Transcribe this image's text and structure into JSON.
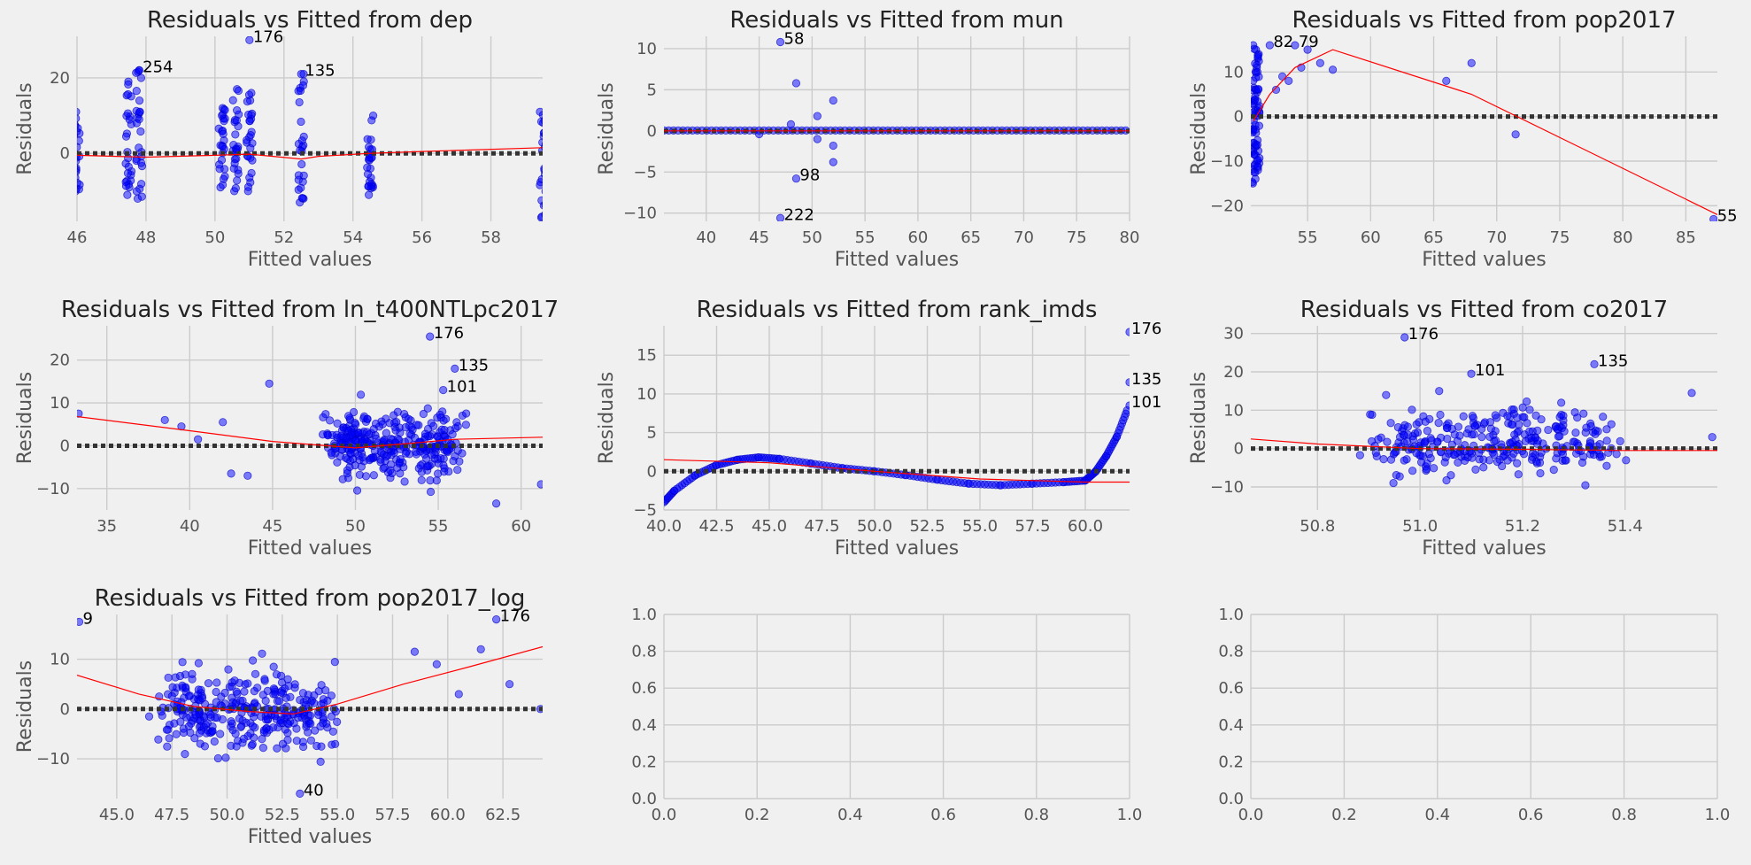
{
  "figure": {
    "background": "#f0f0f0",
    "axes_background": "#f0f0f0",
    "grid_color": "#cbcbcb",
    "tick_color": "#555555",
    "point_color": "#0000ff",
    "lowess_color": "#ff0000",
    "zero_line_color": "#333333"
  },
  "chart_data": [
    {
      "type": "scatter",
      "title": "Residuals vs Fitted from dep",
      "xlabel": "Fitted values",
      "ylabel": "Residuals",
      "xlim": [
        46,
        59.5
      ],
      "ylim": [
        -18,
        31
      ],
      "xticks": [
        46,
        48,
        50,
        52,
        54,
        56,
        58
      ],
      "yticks": [
        0,
        20
      ],
      "x_tick_labels": [
        "46",
        "48",
        "50",
        "52",
        "54",
        "56",
        "58"
      ],
      "y_tick_labels": [
        "0",
        "20"
      ],
      "grid": true,
      "scatter_columns": [
        {
          "x": 46.0,
          "ymin": -10,
          "ymax": 11
        },
        {
          "x": 47.5,
          "ymin": -11,
          "ymax": 19
        },
        {
          "x": 47.8,
          "ymin": -12,
          "ymax": 22
        },
        {
          "x": 50.2,
          "ymin": -9,
          "ymax": 12
        },
        {
          "x": 50.6,
          "ymin": -10,
          "ymax": 17
        },
        {
          "x": 51.0,
          "ymin": -10,
          "ymax": 16
        },
        {
          "x": 52.5,
          "ymin": -13,
          "ymax": 21
        },
        {
          "x": 54.5,
          "ymin": -11,
          "ymax": 10
        },
        {
          "x": 59.5,
          "ymin": -17,
          "ymax": 11
        }
      ],
      "points": [
        [
          47.8,
          22
        ],
        [
          51.0,
          30
        ],
        [
          52.5,
          21
        ]
      ],
      "lowess": [
        [
          46,
          -0.5
        ],
        [
          48,
          -1
        ],
        [
          50,
          -0.5
        ],
        [
          51,
          -0.2
        ],
        [
          52.5,
          -1.5
        ],
        [
          53,
          -0.8
        ],
        [
          54.5,
          0
        ],
        [
          56,
          0.5
        ],
        [
          59.5,
          1.5
        ]
      ],
      "annotations": [
        {
          "text": "254",
          "x": 47.8,
          "y": 22
        },
        {
          "text": "176",
          "x": 51.0,
          "y": 30
        },
        {
          "text": "135",
          "x": 52.5,
          "y": 21
        }
      ]
    },
    {
      "type": "scatter",
      "title": "Residuals vs Fitted from mun",
      "xlabel": "Fitted values",
      "ylabel": "Residuals",
      "xlim": [
        36,
        80
      ],
      "ylim": [
        -11,
        11.5
      ],
      "xticks": [
        40,
        45,
        50,
        55,
        60,
        65,
        70,
        75,
        80
      ],
      "yticks": [
        -10,
        -5,
        0,
        5,
        10
      ],
      "x_tick_labels": [
        "40",
        "45",
        "50",
        "55",
        "60",
        "65",
        "70",
        "75",
        "80"
      ],
      "y_tick_labels": [
        "−10",
        "−5",
        "0",
        "5",
        "10"
      ],
      "grid": true,
      "flat_band": {
        "xmin": 36,
        "xmax": 80,
        "y": 0
      },
      "points": [
        [
          47,
          10.8
        ],
        [
          48.5,
          5.8
        ],
        [
          50.5,
          1.8
        ],
        [
          52,
          3.7
        ],
        [
          50.5,
          -1
        ],
        [
          52,
          -1.8
        ],
        [
          52,
          -3.8
        ],
        [
          48.5,
          -5.8
        ],
        [
          47,
          -10.6
        ],
        [
          48,
          0.8
        ],
        [
          45,
          -0.4
        ]
      ],
      "lowess": [
        [
          36,
          0
        ],
        [
          80,
          0
        ]
      ],
      "annotations": [
        {
          "text": "58",
          "x": 47,
          "y": 10.8
        },
        {
          "text": "98",
          "x": 48.5,
          "y": -5.8
        },
        {
          "text": "222",
          "x": 47,
          "y": -10.6
        }
      ]
    },
    {
      "type": "scatter",
      "title": "Residuals vs Fitted from pop2017",
      "xlabel": "Fitted values",
      "ylabel": "Residuals",
      "xlim": [
        50.5,
        87.5
      ],
      "ylim": [
        -23.5,
        18
      ],
      "xticks": [
        55,
        60,
        65,
        70,
        75,
        80,
        85
      ],
      "yticks": [
        -20,
        -10,
        0,
        10
      ],
      "x_tick_labels": [
        "55",
        "60",
        "65",
        "70",
        "75",
        "80",
        "85"
      ],
      "y_tick_labels": [
        "−20",
        "−10",
        "0",
        "10"
      ],
      "grid": true,
      "scatter_columns": [
        {
          "x": 50.7,
          "ymin": -15,
          "ymax": 16
        },
        {
          "x": 50.9,
          "ymin": -14,
          "ymax": 15
        },
        {
          "x": 51.1,
          "ymin": -12,
          "ymax": 14
        }
      ],
      "points": [
        [
          52,
          16
        ],
        [
          54,
          16
        ],
        [
          55,
          15
        ],
        [
          56,
          12
        ],
        [
          54.5,
          11
        ],
        [
          57,
          10.5
        ],
        [
          53.5,
          8
        ],
        [
          52.5,
          6
        ],
        [
          53,
          9
        ],
        [
          66,
          8
        ],
        [
          68,
          12
        ],
        [
          71.5,
          -4
        ],
        [
          87.2,
          -23
        ]
      ],
      "lowess": [
        [
          50.7,
          -1
        ],
        [
          52,
          5
        ],
        [
          54,
          11
        ],
        [
          57,
          15
        ],
        [
          68,
          5
        ],
        [
          87.5,
          -22
        ]
      ],
      "annotations": [
        {
          "text": "82",
          "x": 52,
          "y": 16
        },
        {
          "text": "79",
          "x": 54,
          "y": 16
        },
        {
          "text": "55",
          "x": 87.2,
          "y": -23
        }
      ]
    },
    {
      "type": "scatter",
      "title": "Residuals vs Fitted from ln_t400NTLpc2017",
      "xlabel": "Fitted values",
      "ylabel": "Residuals",
      "xlim": [
        33.2,
        61.3
      ],
      "ylim": [
        -15,
        28
      ],
      "xticks": [
        35,
        40,
        45,
        50,
        55,
        60
      ],
      "yticks": [
        -10,
        0,
        10,
        20
      ],
      "x_tick_labels": [
        "35",
        "40",
        "45",
        "50",
        "55",
        "60"
      ],
      "y_tick_labels": [
        "−10",
        "0",
        "10",
        "20"
      ],
      "grid": true,
      "cloud": {
        "xmin": 44.5,
        "xmax": 60,
        "ymin": -13,
        "ymax": 14,
        "count": 320,
        "seed": 7
      },
      "points": [
        [
          33.3,
          7.5
        ],
        [
          38.5,
          6
        ],
        [
          39.5,
          4.5
        ],
        [
          40.5,
          1.5
        ],
        [
          42,
          5.5
        ],
        [
          42.5,
          -6.5
        ],
        [
          43.5,
          -7
        ],
        [
          44.8,
          14.5
        ],
        [
          54.5,
          25.5
        ],
        [
          56,
          18
        ],
        [
          55.3,
          13
        ],
        [
          58.5,
          -13.5
        ],
        [
          61.2,
          -9
        ]
      ],
      "lowess": [
        [
          33.2,
          6.8
        ],
        [
          40,
          3.5
        ],
        [
          45,
          1
        ],
        [
          50,
          -0.5
        ],
        [
          54,
          0.8
        ],
        [
          56,
          1.5
        ],
        [
          61.3,
          2
        ]
      ],
      "annotations": [
        {
          "text": "176",
          "x": 54.5,
          "y": 25.5
        },
        {
          "text": "135",
          "x": 56,
          "y": 18
        },
        {
          "text": "101",
          "x": 55.3,
          "y": 13
        }
      ]
    },
    {
      "type": "scatter",
      "title": "Residuals vs Fitted from rank_imds",
      "xlabel": "Fitted values",
      "ylabel": "Residuals",
      "xlim": [
        40,
        62.1
      ],
      "ylim": [
        -5,
        18.8
      ],
      "xticks": [
        40.0,
        42.5,
        45.0,
        47.5,
        50.0,
        52.5,
        55.0,
        57.5,
        60.0
      ],
      "yticks": [
        -5,
        0,
        5,
        10,
        15
      ],
      "x_tick_labels": [
        "40.0",
        "42.5",
        "45.0",
        "47.5",
        "50.0",
        "52.5",
        "55.0",
        "57.5",
        "60.0"
      ],
      "y_tick_labels": [
        "−5",
        "0",
        "5",
        "10",
        "15"
      ],
      "grid": true,
      "curve_points": [
        [
          40,
          -4
        ],
        [
          40.5,
          -2.5
        ],
        [
          41.5,
          -0.5
        ],
        [
          42.5,
          0.8
        ],
        [
          43.5,
          1.5
        ],
        [
          44.5,
          1.8
        ],
        [
          45.5,
          1.6
        ],
        [
          47,
          1
        ],
        [
          48.5,
          0.4
        ],
        [
          50,
          0
        ],
        [
          51.5,
          -0.5
        ],
        [
          53,
          -1.1
        ],
        [
          54.5,
          -1.6
        ],
        [
          56,
          -1.8
        ],
        [
          57.5,
          -1.6
        ],
        [
          59,
          -1.4
        ],
        [
          60,
          -1.2
        ],
        [
          60.5,
          0
        ],
        [
          61,
          2
        ],
        [
          61.5,
          4.5
        ],
        [
          62,
          8
        ]
      ],
      "points": [
        [
          62.1,
          18
        ],
        [
          62.1,
          11.5
        ],
        [
          62.1,
          8.5
        ]
      ],
      "lowess": [
        [
          40,
          1.5
        ],
        [
          45,
          1.1
        ],
        [
          50,
          0
        ],
        [
          55,
          -1
        ],
        [
          60,
          -1.4
        ],
        [
          62.1,
          -1.4
        ]
      ],
      "annotations": [
        {
          "text": "176",
          "x": 62.1,
          "y": 18
        },
        {
          "text": "135",
          "x": 62.1,
          "y": 11.5
        },
        {
          "text": "101",
          "x": 62.1,
          "y": 8.5
        }
      ]
    },
    {
      "type": "scatter",
      "title": "Residuals vs Fitted from co2017",
      "xlabel": "Fitted values",
      "ylabel": "Residuals",
      "xlim": [
        50.67,
        51.58
      ],
      "ylim": [
        -16,
        32
      ],
      "xticks": [
        50.8,
        51.0,
        51.2,
        51.4
      ],
      "yticks": [
        -10,
        0,
        10,
        20,
        30
      ],
      "x_tick_labels": [
        "50.8",
        "51.0",
        "51.2",
        "51.4"
      ],
      "y_tick_labels": [
        "−10",
        "0",
        "10",
        "20",
        "30"
      ],
      "grid": true,
      "cloud": {
        "xmin": 50.7,
        "xmax": 51.57,
        "ymin": -14,
        "ymax": 17,
        "count": 300,
        "seed": 11
      },
      "points": [
        [
          50.97,
          29
        ],
        [
          51.1,
          19.5
        ],
        [
          51.34,
          22
        ],
        [
          51.53,
          14.5
        ],
        [
          51.57,
          3
        ]
      ],
      "lowess": [
        [
          50.67,
          2.5
        ],
        [
          50.8,
          1.2
        ],
        [
          51.0,
          0
        ],
        [
          51.2,
          -0.2
        ],
        [
          51.4,
          -0.5
        ],
        [
          51.58,
          -0.5
        ]
      ],
      "annotations": [
        {
          "text": "176",
          "x": 50.97,
          "y": 29
        },
        {
          "text": "101",
          "x": 51.1,
          "y": 19.5
        },
        {
          "text": "135",
          "x": 51.34,
          "y": 22
        }
      ]
    },
    {
      "type": "scatter",
      "title": "Residuals vs Fitted from pop2017_log",
      "xlabel": "Fitted values",
      "ylabel": "Residuals",
      "xlim": [
        43.2,
        64.3
      ],
      "ylim": [
        -18,
        19
      ],
      "xticks": [
        45.0,
        47.5,
        50.0,
        52.5,
        55.0,
        57.5,
        60.0,
        62.5
      ],
      "yticks": [
        -10,
        0,
        10
      ],
      "x_tick_labels": [
        "45.0",
        "47.5",
        "50.0",
        "52.5",
        "55.0",
        "57.5",
        "60.0",
        "62.5"
      ],
      "y_tick_labels": [
        "−10",
        "0",
        "10"
      ],
      "grid": true,
      "cloud": {
        "xmin": 44,
        "xmax": 58,
        "ymin": -14,
        "ymax": 13,
        "count": 320,
        "seed": 23
      },
      "points": [
        [
          43.3,
          17.5
        ],
        [
          62.2,
          18
        ],
        [
          53.3,
          -17
        ],
        [
          61.5,
          12
        ],
        [
          58.5,
          11.5
        ],
        [
          59.5,
          9
        ],
        [
          60.5,
          3
        ],
        [
          62.8,
          5
        ],
        [
          64.2,
          0
        ]
      ],
      "lowess": [
        [
          43.2,
          6.8
        ],
        [
          46,
          3
        ],
        [
          48.5,
          0.5
        ],
        [
          51,
          -0.5
        ],
        [
          53,
          -1
        ],
        [
          55,
          1
        ],
        [
          58,
          5
        ],
        [
          61,
          8.5
        ],
        [
          64.3,
          12.5
        ]
      ],
      "annotations": [
        {
          "text": "9",
          "x": 43.3,
          "y": 17.5
        },
        {
          "text": "176",
          "x": 62.2,
          "y": 18
        },
        {
          "text": "40",
          "x": 53.3,
          "y": -17
        }
      ]
    },
    {
      "type": "scatter",
      "title": "",
      "xlabel": "",
      "ylabel": "",
      "xlim": [
        0,
        1
      ],
      "ylim": [
        0,
        1
      ],
      "xticks": [
        0,
        0.2,
        0.4,
        0.6,
        0.8,
        1.0
      ],
      "yticks": [
        0,
        0.2,
        0.4,
        0.6,
        0.8,
        1.0
      ],
      "x_tick_labels": [
        "0.0",
        "0.2",
        "0.4",
        "0.6",
        "0.8",
        "1.0"
      ],
      "y_tick_labels": [
        "0.0",
        "0.2",
        "0.4",
        "0.6",
        "0.8",
        "1.0"
      ],
      "grid": true,
      "empty": true
    },
    {
      "type": "scatter",
      "title": "",
      "xlabel": "",
      "ylabel": "",
      "xlim": [
        0,
        1
      ],
      "ylim": [
        0,
        1
      ],
      "xticks": [
        0,
        0.2,
        0.4,
        0.6,
        0.8,
        1.0
      ],
      "yticks": [
        0,
        0.2,
        0.4,
        0.6,
        0.8,
        1.0
      ],
      "x_tick_labels": [
        "0.0",
        "0.2",
        "0.4",
        "0.6",
        "0.8",
        "1.0"
      ],
      "y_tick_labels": [
        "0.0",
        "0.2",
        "0.4",
        "0.6",
        "0.8",
        "1.0"
      ],
      "grid": true,
      "empty": true
    }
  ]
}
